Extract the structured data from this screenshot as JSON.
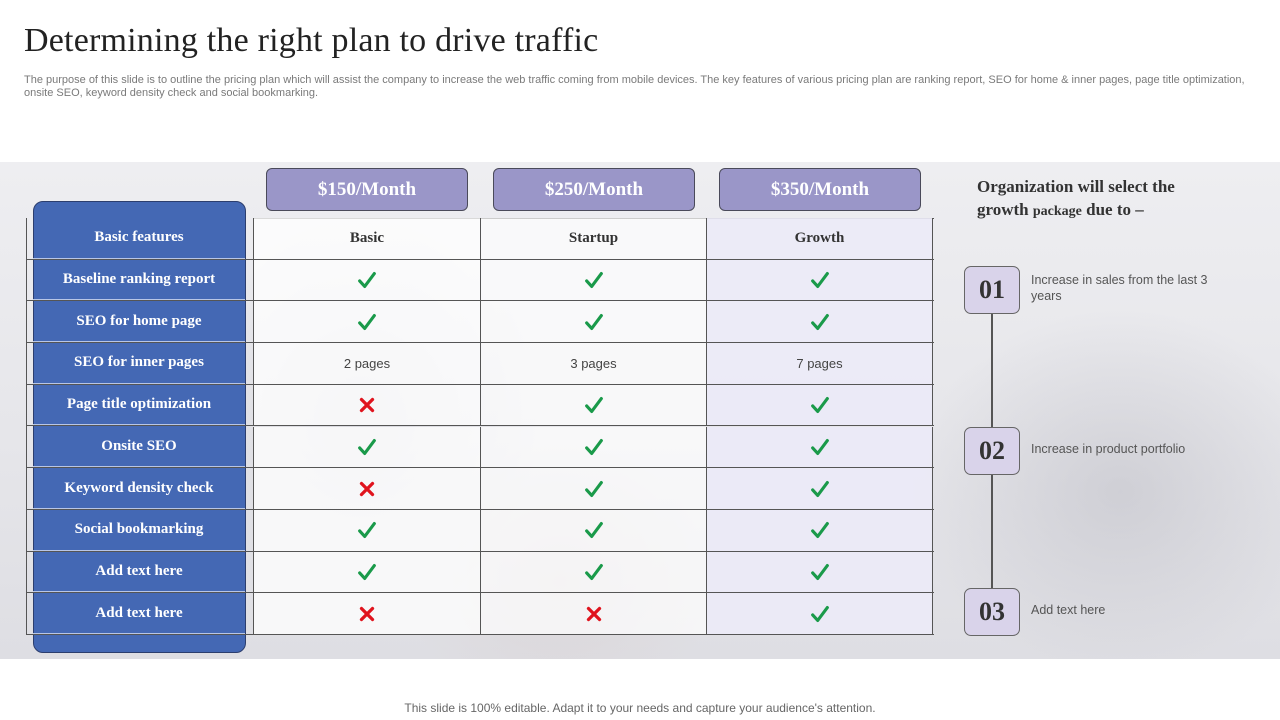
{
  "slide": {
    "title": "Determining the right plan to drive traffic",
    "subtitle": "The purpose of this slide is to outline the pricing plan which will assist the company to increase the web traffic coming from mobile devices. The key features of various pricing plan are ranking report, SEO for home & inner pages, page title optimization, onsite SEO, keyword density check and social bookmarking."
  },
  "prices": [
    "$150/Month",
    "$250/Month",
    "$350/Month"
  ],
  "table": {
    "header": {
      "feature": "Basic features",
      "plans": [
        "Basic",
        "Startup",
        "Growth"
      ]
    },
    "rows": [
      {
        "feature": "Baseline ranking  report",
        "values": [
          "check",
          "check",
          "check"
        ]
      },
      {
        "feature": "SEO for home page",
        "values": [
          "check",
          "check",
          "check"
        ]
      },
      {
        "feature": "SEO for inner pages",
        "values": [
          "2 pages",
          "3 pages",
          "7 pages"
        ]
      },
      {
        "feature": "Page title optimization",
        "values": [
          "cross",
          "check",
          "check"
        ]
      },
      {
        "feature": "Onsite SEO",
        "values": [
          "check",
          "check",
          "check"
        ]
      },
      {
        "feature": "Keyword  density check",
        "values": [
          "cross",
          "check",
          "check"
        ]
      },
      {
        "feature": "Social bookmarking",
        "values": [
          "check",
          "check",
          "check"
        ]
      },
      {
        "feature": "Add text here",
        "values": [
          "check",
          "check",
          "check"
        ]
      },
      {
        "feature": "Add text here",
        "values": [
          "cross",
          "cross",
          "check"
        ]
      }
    ]
  },
  "side": {
    "title_line1": "Organization will select the",
    "title_line2_a": "growth ",
    "title_line2_b": "package",
    "title_line2_c": " due to –",
    "reasons": [
      {
        "num": "01",
        "text": "Increase in sales from the last 3 years"
      },
      {
        "num": "02",
        "text": "Increase in product portfolio"
      },
      {
        "num": "03",
        "text": "Add text here"
      }
    ]
  },
  "footer": "This slide is 100% editable. Adapt it to your needs and capture your audience's attention.",
  "colors": {
    "check": "#1a9a4a",
    "cross": "#e0141e",
    "feature_column": "#4468b4",
    "price_tab": "#9a96c8",
    "number_box": "#d9d3ea"
  },
  "icons": {
    "check": "check-icon",
    "cross": "cross-icon"
  }
}
